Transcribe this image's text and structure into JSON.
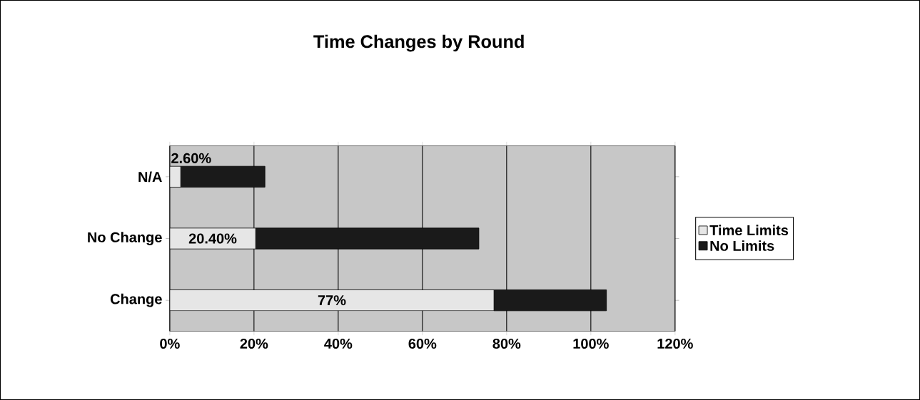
{
  "chart_data": {
    "type": "bar",
    "orientation": "horizontal",
    "stacked": true,
    "title": "Time Changes by Round",
    "categories": [
      "N/A",
      "No Change",
      "Change"
    ],
    "series": [
      {
        "name": "Time Limits",
        "color": "#e6e6e6",
        "values": [
          2.6,
          20.4,
          77
        ],
        "value_labels": [
          "2.60%",
          "20.40%",
          "77%"
        ]
      },
      {
        "name": "No Limits",
        "color": "#1a1a1a",
        "values": [
          20,
          53,
          26.7
        ]
      }
    ],
    "xlim": [
      0,
      120
    ],
    "xticks": [
      {
        "value": 0,
        "label": "0%"
      },
      {
        "value": 20,
        "label": "20%"
      },
      {
        "value": 40,
        "label": "40%"
      },
      {
        "value": 60,
        "label": "60%"
      },
      {
        "value": 80,
        "label": "80%"
      },
      {
        "value": 100,
        "label": "100%"
      },
      {
        "value": 120,
        "label": "120%"
      }
    ],
    "grid": "x",
    "legend": "right"
  }
}
